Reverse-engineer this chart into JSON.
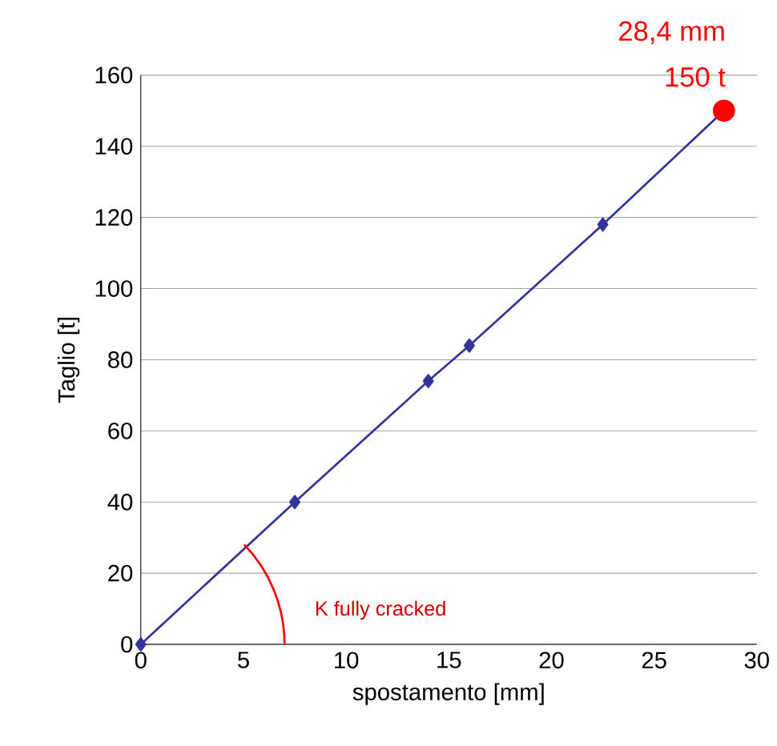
{
  "chart_data": {
    "type": "line",
    "xlabel": "spostamento [mm]",
    "ylabel": "Taglio [t]",
    "xlim": [
      0,
      30
    ],
    "ylim": [
      0,
      160
    ],
    "xticks": [
      0,
      5,
      10,
      15,
      20,
      25,
      30
    ],
    "yticks": [
      0,
      20,
      40,
      60,
      80,
      100,
      120,
      140,
      160
    ],
    "grid": "y",
    "line_style": "solid",
    "series": [
      {
        "marker": "diamond",
        "color": "#333399",
        "x": [
          0,
          7.5,
          14,
          16,
          22.5,
          28.4
        ],
        "values": [
          0,
          40,
          74,
          84,
          118,
          150
        ]
      },
      {
        "type": "scatter",
        "marker": "circle",
        "color": "#ff0000",
        "x": [
          28.4
        ],
        "values": [
          150
        ]
      }
    ],
    "annotations": [
      {
        "text": "28,4 mm",
        "x": 28.4,
        "y": 150
      },
      {
        "text": "150 t",
        "x": 28.4,
        "y": 150
      },
      "K fully cracked"
    ]
  }
}
